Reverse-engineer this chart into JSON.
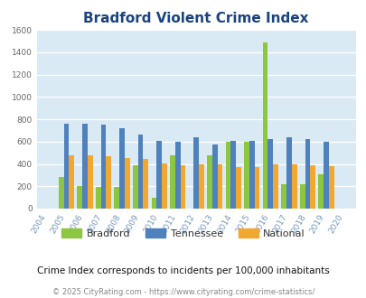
{
  "title": "Bradford Violent Crime Index",
  "years": [
    2004,
    2005,
    2006,
    2007,
    2008,
    2009,
    2010,
    2011,
    2012,
    2013,
    2014,
    2015,
    2016,
    2017,
    2018,
    2019,
    2020
  ],
  "bradford": [
    0,
    280,
    200,
    190,
    190,
    390,
    95,
    480,
    0,
    480,
    600,
    600,
    1490,
    215,
    215,
    310,
    0
  ],
  "tennessee": [
    0,
    760,
    760,
    750,
    720,
    660,
    610,
    600,
    635,
    575,
    605,
    605,
    625,
    640,
    625,
    595,
    0
  ],
  "national": [
    0,
    475,
    475,
    465,
    455,
    445,
    405,
    385,
    400,
    400,
    375,
    375,
    400,
    395,
    385,
    380,
    0
  ],
  "bradford_color": "#8dc63f",
  "tennessee_color": "#4f81bd",
  "national_color": "#f0a830",
  "bg_color": "#daeaf5",
  "title_color": "#1a4480",
  "ylim": [
    0,
    1600
  ],
  "yticks": [
    0,
    200,
    400,
    600,
    800,
    1000,
    1200,
    1400,
    1600
  ],
  "legend_labels": [
    "Bradford",
    "Tennessee",
    "National"
  ],
  "subtitle": "Crime Index corresponds to incidents per 100,000 inhabitants",
  "footer": "© 2025 CityRating.com - https://www.cityrating.com/crime-statistics/"
}
